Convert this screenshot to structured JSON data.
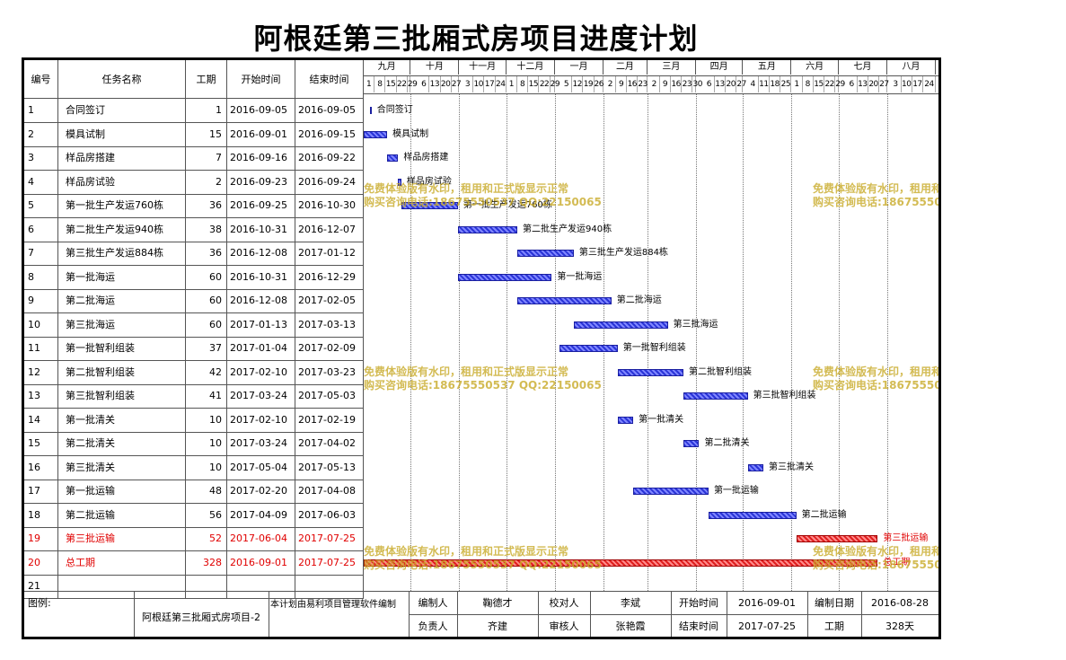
{
  "title": "阿根廷第三批厢式房项目进度计划",
  "table": {
    "headers": [
      "编号",
      "任务名称",
      "工期",
      "开始时间",
      "结束时间"
    ],
    "rows": [
      {
        "id": "1",
        "name": "合同签订",
        "days": "1",
        "start": "2016-09-05",
        "end": "2016-09-05"
      },
      {
        "id": "2",
        "name": "模具试制",
        "days": "15",
        "start": "2016-09-01",
        "end": "2016-09-15"
      },
      {
        "id": "3",
        "name": "样品房搭建",
        "days": "7",
        "start": "2016-09-16",
        "end": "2016-09-22"
      },
      {
        "id": "4",
        "name": "样品房试验",
        "days": "2",
        "start": "2016-09-23",
        "end": "2016-09-24"
      },
      {
        "id": "5",
        "name": "第一批生产发运760栋",
        "days": "36",
        "start": "2016-09-25",
        "end": "2016-10-30"
      },
      {
        "id": "6",
        "name": "第二批生产发运940栋",
        "days": "38",
        "start": "2016-10-31",
        "end": "2016-12-07"
      },
      {
        "id": "7",
        "name": "第三批生产发运884栋",
        "days": "36",
        "start": "2016-12-08",
        "end": "2017-01-12"
      },
      {
        "id": "8",
        "name": "第一批海运",
        "days": "60",
        "start": "2016-10-31",
        "end": "2016-12-29"
      },
      {
        "id": "9",
        "name": "第二批海运",
        "days": "60",
        "start": "2016-12-08",
        "end": "2017-02-05"
      },
      {
        "id": "10",
        "name": "第三批海运",
        "days": "60",
        "start": "2017-01-13",
        "end": "2017-03-13"
      },
      {
        "id": "11",
        "name": "第一批智利组装",
        "days": "37",
        "start": "2017-01-04",
        "end": "2017-02-09"
      },
      {
        "id": "12",
        "name": "第二批智利组装",
        "days": "42",
        "start": "2017-02-10",
        "end": "2017-03-23"
      },
      {
        "id": "13",
        "name": "第三批智利组装",
        "days": "41",
        "start": "2017-03-24",
        "end": "2017-05-03"
      },
      {
        "id": "14",
        "name": "第一批清关",
        "days": "10",
        "start": "2017-02-10",
        "end": "2017-02-19"
      },
      {
        "id": "15",
        "name": "第二批清关",
        "days": "10",
        "start": "2017-03-24",
        "end": "2017-04-02"
      },
      {
        "id": "16",
        "name": "第三批清关",
        "days": "10",
        "start": "2017-05-04",
        "end": "2017-05-13"
      },
      {
        "id": "17",
        "name": "第一批运输",
        "days": "48",
        "start": "2017-02-20",
        "end": "2017-04-08"
      },
      {
        "id": "18",
        "name": "第二批运输",
        "days": "56",
        "start": "2017-04-09",
        "end": "2017-06-03"
      },
      {
        "id": "19",
        "name": "第三批运输",
        "days": "52",
        "start": "2017-06-04",
        "end": "2017-07-25",
        "highlight": true
      },
      {
        "id": "20",
        "name": "总工期",
        "days": "328",
        "start": "2016-09-01",
        "end": "2017-07-25",
        "highlight": true
      },
      {
        "id": "21",
        "name": "",
        "days": "",
        "start": "",
        "end": ""
      }
    ]
  },
  "timeline": {
    "months": [
      "九月",
      "十月",
      "十一月",
      "十二月",
      "一月",
      "二月",
      "三月",
      "四月",
      "五月",
      "六月",
      "七月",
      "八月"
    ],
    "days": [
      [
        "1",
        "8",
        "15",
        "22",
        "29"
      ],
      [
        "6",
        "13",
        "20",
        "27"
      ],
      [
        "3",
        "10",
        "17",
        "24"
      ],
      [
        "1",
        "8",
        "15",
        "22",
        "29"
      ],
      [
        "5",
        "12",
        "19",
        "26"
      ],
      [
        "2",
        "9",
        "16",
        "23"
      ],
      [
        "2",
        "9",
        "16",
        "23",
        "30"
      ],
      [
        "6",
        "13",
        "20",
        "27"
      ],
      [
        "4",
        "11",
        "18",
        "25"
      ],
      [
        "1",
        "8",
        "15",
        "22",
        "29"
      ],
      [
        "6",
        "13",
        "20",
        "27"
      ],
      [
        "3",
        "10",
        "17",
        "24"
      ]
    ],
    "bar_color": "#2b35d8",
    "highlight_color": "#e02020"
  },
  "watermark": {
    "line1": "免费体验版有水印，租用和正式版显示正常",
    "line2": "购买咨询电话:18675550537 QQ:22150065",
    "color": "#c8aa28"
  },
  "footer": {
    "legend_label": "图例:",
    "project": "阿根廷第三批厢式房项目-2",
    "note": "本计划由易利项目管理软件编制",
    "prepared_by_label": "编制人",
    "prepared_by": "鞠德才",
    "checked_by_label": "校对人",
    "checked_by": "李斌",
    "start_label": "开始时间",
    "start": "2016-09-01",
    "date_label": "编制日期",
    "date": "2016-08-28",
    "owner_label": "负责人",
    "owner": "齐建",
    "reviewer_label": "审核人",
    "reviewer": "张艳霞",
    "end_label": "结束时间",
    "end": "2017-07-25",
    "duration_label": "工期",
    "duration": "328天"
  }
}
